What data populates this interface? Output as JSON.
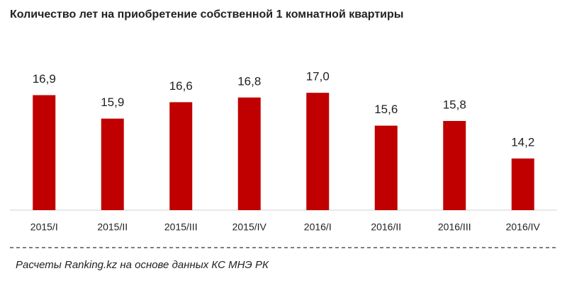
{
  "chart_data": {
    "type": "bar",
    "title": "Количество  лет на приобретение собственной  1 комнатной квартиры",
    "categories": [
      "2015/I",
      "2015/II",
      "2015/III",
      "2015/IV",
      "2016/I",
      "2016/II",
      "2016/III",
      "2016/IV"
    ],
    "values": [
      16.9,
      15.9,
      16.6,
      16.8,
      17.0,
      15.6,
      15.8,
      14.2
    ],
    "value_labels": [
      "16,9",
      "15,9",
      "16,6",
      "16,8",
      "17,0",
      "15,6",
      "15,8",
      "14,2"
    ],
    "color": "#c00000",
    "ylim": [
      12,
      18
    ],
    "source": "Расчеты Ranking.kz на основе данных КС МНЭ РК"
  }
}
